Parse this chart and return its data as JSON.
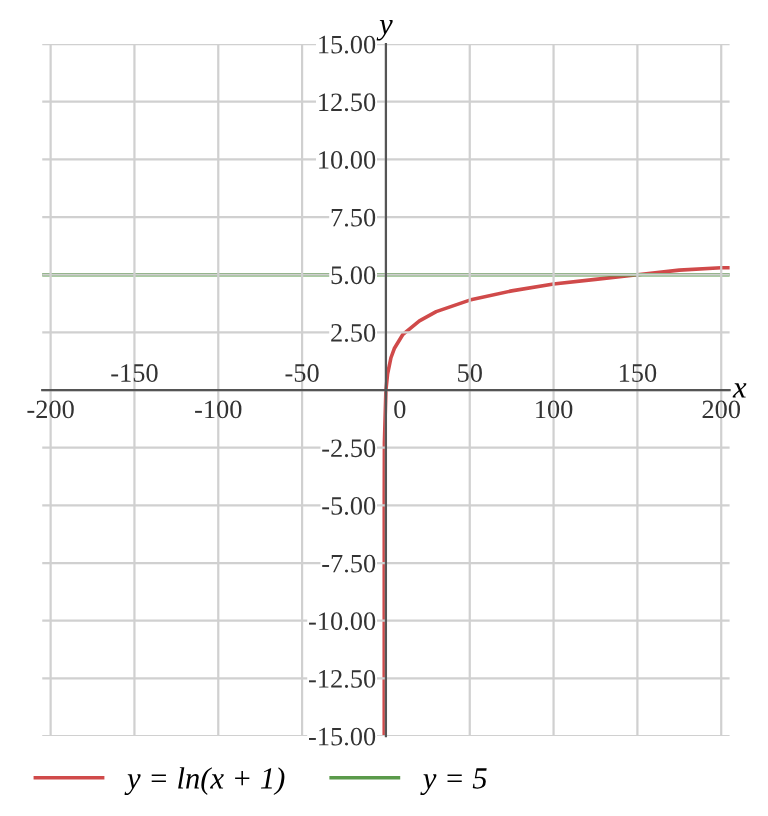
{
  "chart_data": {
    "type": "line",
    "xlabel": "x",
    "ylabel": "y",
    "xlim": [
      -205,
      205
    ],
    "ylim": [
      -15,
      15
    ],
    "xticks": [
      -200,
      {
        "value": -150,
        "label": null
      },
      -100,
      {
        "value": -50,
        "label": null
      },
      0,
      {
        "value": 50,
        "label": null
      },
      100,
      {
        "value": 150,
        "label": null
      },
      200
    ],
    "x2lim": [
      -205,
      205
    ],
    "x2ticks": [
      -150,
      -50,
      50,
      150
    ],
    "yticks": [
      {
        "value": -15,
        "label": "-15.00"
      },
      {
        "value": -12.5,
        "label": "-12.50"
      },
      {
        "value": -10,
        "label": "-10.00"
      },
      {
        "value": -7.5,
        "label": "-7.50"
      },
      {
        "value": -5,
        "label": "-5.00"
      },
      {
        "value": -2.5,
        "label": "-2.50"
      },
      {
        "value": 0,
        "label": null
      },
      {
        "value": 2.5,
        "label": "2.50"
      },
      {
        "value": 5,
        "label": "5.00"
      },
      {
        "value": 7.5,
        "label": "7.50"
      },
      {
        "value": 10,
        "label": "10.00"
      },
      {
        "value": 12.5,
        "label": "12.50"
      },
      {
        "value": 15,
        "label": "15.00"
      }
    ],
    "grid": true,
    "legend": "bottom",
    "series": [
      {
        "name": "y = ln(x + 1)",
        "color": "#d04a4a",
        "x": [
          -1,
          -0.99,
          -0.9,
          0,
          1,
          3,
          5,
          10,
          20,
          30,
          50,
          75,
          100,
          125,
          150,
          175,
          200,
          205
        ],
        "values": [
          -15,
          -4.6,
          -2.3,
          0,
          0.7,
          1.4,
          1.8,
          2.4,
          3.0,
          3.4,
          3.9,
          4.3,
          4.6,
          4.8,
          5.0,
          5.2,
          5.3,
          5.3
        ]
      },
      {
        "name": "y = 5",
        "color": "#5a9a4a",
        "x": [
          -205,
          205
        ],
        "values": [
          5,
          5
        ]
      }
    ]
  }
}
